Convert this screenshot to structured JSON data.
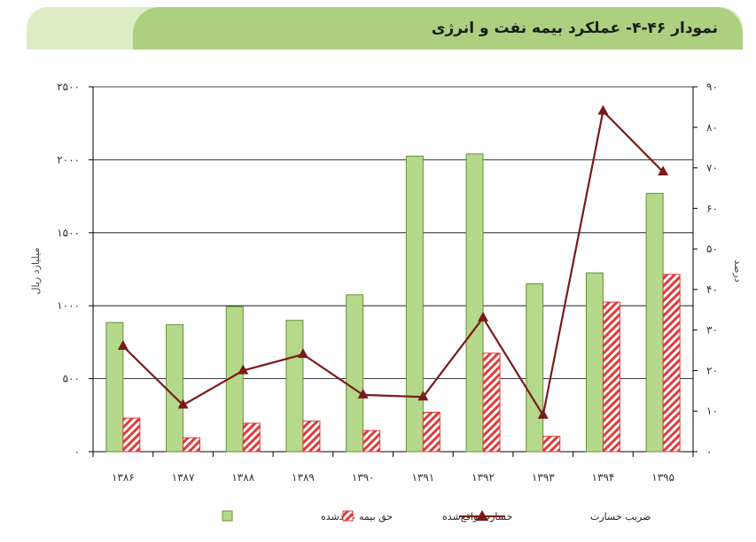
{
  "header": {
    "title": "نمودار ۴۶-۴- عملکرد بیمه نفت و انرژی"
  },
  "colors": {
    "premium_bar": "#b4d98a",
    "premium_stroke": "#6b8e3a",
    "loss_hatch": "#e03a3a",
    "loss_ratio_line": "#7a1a1a",
    "header_band": "#acd07f",
    "header_band_light": "#dcedc6"
  },
  "chart_data": {
    "type": "bar",
    "categories": [
      "۱۳۸۶",
      "۱۳۸۷",
      "۱۳۸۸",
      "۱۳۸۹",
      "۱۳۹۰",
      "۱۳۹۱",
      "۱۳۹۲",
      "۱۳۹۳",
      "۱۳۹۴",
      "۱۳۹۵"
    ],
    "series": [
      {
        "name": "حق بیمه عایدشده",
        "type": "bar",
        "axis": "left",
        "values": [
          885,
          870,
          995,
          900,
          1075,
          2025,
          2040,
          1150,
          1225,
          1770
        ]
      },
      {
        "name": "خسارت واقع‌شده",
        "type": "bar",
        "axis": "left",
        "values": [
          230,
          95,
          195,
          210,
          145,
          270,
          675,
          105,
          1025,
          1215
        ]
      },
      {
        "name": "ضریب خسارت",
        "type": "line",
        "axis": "right",
        "values": [
          26,
          11.5,
          20,
          24,
          14,
          13.5,
          33,
          9,
          84,
          69
        ]
      }
    ],
    "left_axis": {
      "label": "میلیارد ریال",
      "min": 0,
      "max": 2500,
      "ticks": [
        "۰",
        "۵۰۰",
        "۱۰۰۰",
        "۱۵۰۰",
        "۲۰۰۰",
        "۲۵۰۰"
      ]
    },
    "right_axis": {
      "label": "درصد",
      "min": 0,
      "max": 90,
      "ticks": [
        "۰",
        "۱۰",
        "۲۰",
        "۳۰",
        "۴۰",
        "۵۰",
        "۶۰",
        "۷۰",
        "۸۰",
        "۹۰"
      ]
    },
    "grid": true,
    "legend_position": "bottom"
  }
}
